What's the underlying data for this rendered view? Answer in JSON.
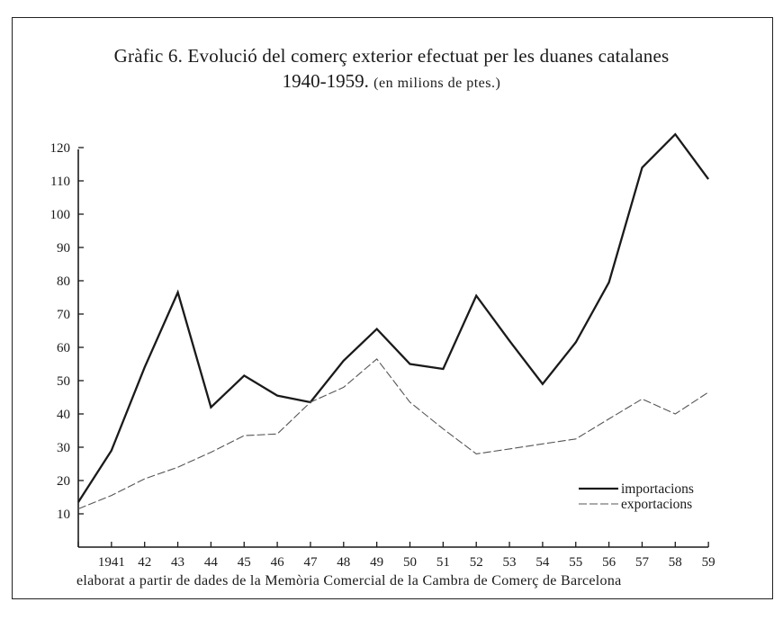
{
  "chart_data": {
    "type": "line",
    "title": "Gràfic 6. Evolució del comerç exterior efectuat per les duanes catalanes",
    "title_years": "1940-1959.",
    "title_units": "(en milions de ptes.)",
    "source_note": "elaborat a partir de dades de la Memòria Comercial de la Cambra de Comerç de Barcelona",
    "x": [
      1940,
      1941,
      1942,
      1943,
      1944,
      1945,
      1946,
      1947,
      1948,
      1949,
      1950,
      1951,
      1952,
      1953,
      1954,
      1955,
      1956,
      1957,
      1958,
      1959
    ],
    "x_tick_labels": [
      "1941",
      "42",
      "43",
      "44",
      "45",
      "46",
      "47",
      "48",
      "49",
      "50",
      "51",
      "52",
      "53",
      "54",
      "55",
      "56",
      "57",
      "58",
      "59"
    ],
    "y_ticks": [
      10,
      20,
      30,
      40,
      50,
      60,
      70,
      80,
      90,
      100,
      110,
      120
    ],
    "ylim": [
      0,
      125
    ],
    "legend_position": "bottom-right",
    "series": [
      {
        "name": "importacions",
        "style": "solid",
        "color": "#1a1a1a",
        "values": [
          13.5,
          29,
          54,
          76.5,
          42,
          51.5,
          45.5,
          43.5,
          56,
          65.5,
          55,
          53.5,
          75.5,
          62,
          49,
          61.5,
          79.5,
          114,
          124,
          110.5
        ]
      },
      {
        "name": "exportacions",
        "style": "dashed",
        "color": "#555555",
        "values": [
          11.5,
          15.5,
          20.5,
          24,
          28.5,
          33.5,
          34,
          43.5,
          48,
          56.5,
          43.5,
          35.5,
          28,
          29.5,
          31,
          32.5,
          38.5,
          44.5,
          40,
          46.5
        ]
      }
    ]
  }
}
